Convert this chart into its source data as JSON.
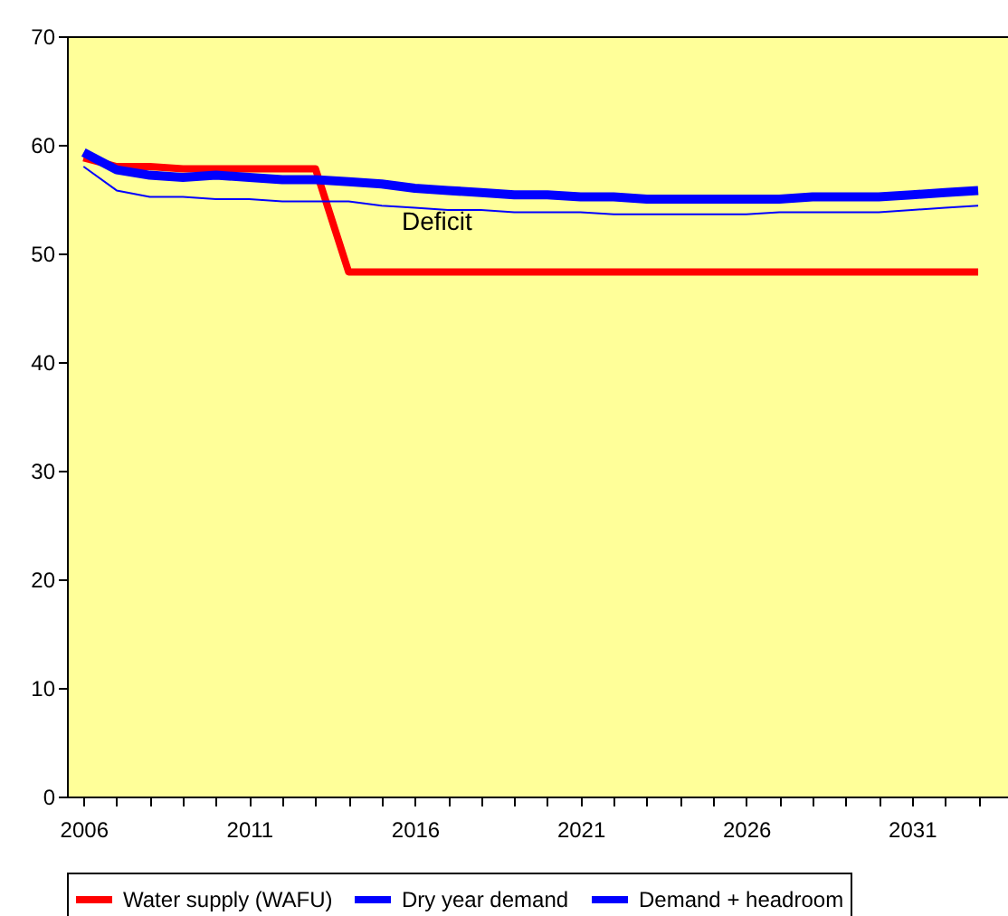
{
  "chart_data": {
    "type": "line",
    "x": [
      2006,
      2007,
      2008,
      2009,
      2010,
      2011,
      2012,
      2013,
      2014,
      2015,
      2016,
      2017,
      2018,
      2019,
      2020,
      2021,
      2022,
      2023,
      2024,
      2025,
      2026,
      2027,
      2028,
      2029,
      2030,
      2031,
      2032,
      2033
    ],
    "series": [
      {
        "name": "Water supply (WAFU)",
        "color": "#ff0000",
        "values": [
          58.8,
          58.0,
          58.0,
          57.8,
          57.8,
          57.8,
          57.8,
          57.8,
          48.3,
          48.3,
          48.3,
          48.3,
          48.3,
          48.3,
          48.3,
          48.3,
          48.3,
          48.3,
          48.3,
          48.3,
          48.3,
          48.3,
          48.3,
          48.3,
          48.3,
          48.3,
          48.3,
          48.3
        ]
      },
      {
        "name": "Dry year demand",
        "color": "#0000ff",
        "values": [
          58.0,
          55.8,
          55.2,
          55.2,
          55.0,
          55.0,
          54.8,
          54.8,
          54.8,
          54.4,
          54.2,
          54.0,
          54.0,
          53.8,
          53.8,
          53.8,
          53.6,
          53.6,
          53.6,
          53.6,
          53.6,
          53.8,
          53.8,
          53.8,
          53.8,
          54.0,
          54.2,
          54.4
        ]
      },
      {
        "name": "Demand + headroom",
        "color": "#0000ff",
        "values": [
          59.3,
          57.7,
          57.2,
          57.0,
          57.2,
          57.0,
          56.8,
          56.8,
          56.6,
          56.4,
          56.0,
          55.8,
          55.6,
          55.4,
          55.4,
          55.2,
          55.2,
          55.0,
          55.0,
          55.0,
          55.0,
          55.0,
          55.2,
          55.2,
          55.2,
          55.4,
          55.6,
          55.8
        ]
      }
    ],
    "xlim": [
      2005.5,
      2033.9
    ],
    "xticks": [
      2006,
      {
        "value": 2007,
        "label": null
      },
      {
        "value": 2008,
        "label": null
      },
      {
        "value": 2009,
        "label": null
      },
      {
        "value": 2010,
        "label": null
      },
      2011,
      {
        "value": 2012,
        "label": null
      },
      {
        "value": 2013,
        "label": null
      },
      {
        "value": 2014,
        "label": null
      },
      {
        "value": 2015,
        "label": null
      },
      2016,
      {
        "value": 2017,
        "label": null
      },
      {
        "value": 2018,
        "label": null
      },
      {
        "value": 2019,
        "label": null
      },
      {
        "value": 2020,
        "label": null
      },
      2021,
      {
        "value": 2022,
        "label": null
      },
      {
        "value": 2023,
        "label": null
      },
      {
        "value": 2024,
        "label": null
      },
      {
        "value": 2025,
        "label": null
      },
      2026,
      {
        "value": 2027,
        "label": null
      },
      {
        "value": 2028,
        "label": null
      },
      {
        "value": 2029,
        "label": null
      },
      {
        "value": 2030,
        "label": null
      },
      2031,
      {
        "value": 2032,
        "label": null
      },
      {
        "value": 2033,
        "label": null
      }
    ],
    "ylim": [
      0,
      70
    ],
    "yticks": [
      0,
      10,
      20,
      30,
      40,
      50,
      60,
      70
    ],
    "annotations": [
      "Deficit"
    ],
    "legend": "bottom",
    "grid": false,
    "marker": "none",
    "line_style": "solid"
  }
}
